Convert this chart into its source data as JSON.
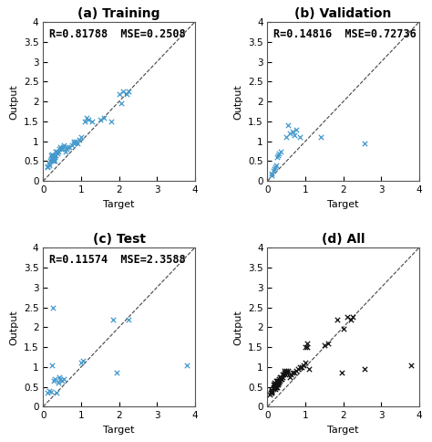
{
  "training": {
    "title": "(a) Training",
    "R": "R=0.81788",
    "MSE": "MSE=0.2508",
    "target": [
      0.1,
      0.12,
      0.15,
      0.15,
      0.18,
      0.2,
      0.2,
      0.22,
      0.23,
      0.25,
      0.25,
      0.27,
      0.28,
      0.28,
      0.28,
      0.3,
      0.3,
      0.3,
      0.32,
      0.33,
      0.35,
      0.38,
      0.4,
      0.42,
      0.45,
      0.48,
      0.5,
      0.52,
      0.55,
      0.6,
      0.62,
      0.65,
      0.7,
      0.75,
      0.8,
      0.82,
      0.85,
      0.9,
      0.95,
      1.0,
      1.1,
      1.15,
      1.2,
      1.3,
      1.5,
      1.6,
      1.8,
      2.0,
      2.05,
      2.1,
      2.2,
      2.25
    ],
    "output": [
      0.35,
      0.38,
      0.4,
      0.45,
      0.5,
      0.55,
      0.65,
      0.6,
      0.68,
      0.5,
      0.55,
      0.6,
      0.5,
      0.55,
      0.6,
      0.5,
      0.6,
      0.65,
      0.65,
      0.75,
      0.75,
      0.7,
      0.75,
      0.8,
      0.85,
      0.8,
      0.8,
      0.85,
      0.9,
      0.75,
      0.8,
      0.85,
      0.85,
      0.9,
      0.95,
      1.0,
      1.0,
      0.95,
      1.05,
      1.1,
      1.5,
      1.6,
      1.55,
      1.5,
      1.55,
      1.6,
      1.5,
      2.2,
      1.95,
      2.25,
      2.2,
      2.25
    ]
  },
  "validation": {
    "title": "(b) Validation",
    "R": "R=0.14816",
    "MSE": "MSE=0.72736",
    "target": [
      0.1,
      0.12,
      0.15,
      0.18,
      0.2,
      0.22,
      0.25,
      0.28,
      0.3,
      0.35,
      0.5,
      0.55,
      0.6,
      0.65,
      0.7,
      0.75,
      0.85,
      1.4,
      2.55
    ],
    "output": [
      0.15,
      0.2,
      0.25,
      0.3,
      0.35,
      0.4,
      0.6,
      0.65,
      0.7,
      0.75,
      1.1,
      1.4,
      1.2,
      1.25,
      1.15,
      1.3,
      1.1,
      1.1,
      0.95
    ]
  },
  "test": {
    "title": "(c) Test",
    "R": "R=0.11574",
    "MSE": "MSE=2.3588",
    "target": [
      0.1,
      0.15,
      0.2,
      0.22,
      0.25,
      0.28,
      0.3,
      0.35,
      0.4,
      0.42,
      0.45,
      0.5,
      0.55,
      1.0,
      1.05,
      1.85,
      1.95,
      2.25,
      3.8
    ],
    "output": [
      0.35,
      0.4,
      0.38,
      1.05,
      2.5,
      0.65,
      0.7,
      0.35,
      0.6,
      0.75,
      0.7,
      0.65,
      0.7,
      1.1,
      1.15,
      2.2,
      0.85,
      2.2,
      1.05
    ]
  },
  "all": {
    "title": "(d) All",
    "target": [
      0.05,
      0.08,
      0.1,
      0.1,
      0.12,
      0.12,
      0.15,
      0.15,
      0.15,
      0.18,
      0.18,
      0.18,
      0.2,
      0.2,
      0.2,
      0.22,
      0.22,
      0.22,
      0.25,
      0.25,
      0.25,
      0.25,
      0.28,
      0.28,
      0.28,
      0.3,
      0.3,
      0.3,
      0.32,
      0.33,
      0.35,
      0.35,
      0.38,
      0.4,
      0.4,
      0.42,
      0.45,
      0.45,
      0.48,
      0.5,
      0.5,
      0.52,
      0.55,
      0.6,
      0.62,
      0.65,
      0.7,
      0.75,
      0.8,
      0.85,
      0.9,
      0.95,
      1.0,
      1.0,
      1.05,
      1.05,
      1.1,
      1.5,
      1.6,
      1.85,
      1.95,
      2.0,
      2.1,
      2.2,
      2.25,
      2.55,
      3.8
    ],
    "output": [
      0.3,
      0.35,
      0.35,
      0.4,
      0.38,
      0.42,
      0.45,
      0.5,
      0.55,
      0.5,
      0.55,
      0.6,
      0.45,
      0.5,
      0.55,
      0.5,
      0.55,
      0.65,
      0.5,
      0.55,
      0.6,
      0.65,
      0.55,
      0.6,
      0.65,
      0.6,
      0.65,
      0.7,
      0.65,
      0.75,
      0.7,
      0.75,
      0.7,
      0.75,
      0.8,
      0.8,
      0.85,
      0.9,
      0.8,
      0.85,
      0.9,
      0.85,
      0.9,
      0.75,
      0.8,
      0.85,
      0.85,
      0.9,
      0.95,
      1.0,
      1.0,
      1.05,
      1.1,
      1.5,
      1.5,
      1.6,
      0.95,
      1.55,
      1.6,
      2.2,
      0.85,
      1.95,
      2.25,
      2.2,
      2.25,
      0.95,
      1.05
    ]
  },
  "scatter_color_blue": "#4499cc",
  "scatter_color_black": "#111111",
  "xlim": [
    0,
    4
  ],
  "ylim": [
    0,
    4
  ],
  "xticks": [
    0,
    1,
    2,
    3,
    4
  ],
  "yticks": [
    0,
    0.5,
    1.0,
    1.5,
    2.0,
    2.5,
    3.0,
    3.5,
    4.0
  ],
  "yticklabels": [
    "0",
    "0.5",
    "1",
    "1.5",
    "2",
    "2.5",
    "3",
    "3.5",
    "4"
  ],
  "xlabel": "Target",
  "ylabel": "Output",
  "diag_color": "#444444",
  "annotation_fontsize": 8.5,
  "title_fontsize": 10
}
